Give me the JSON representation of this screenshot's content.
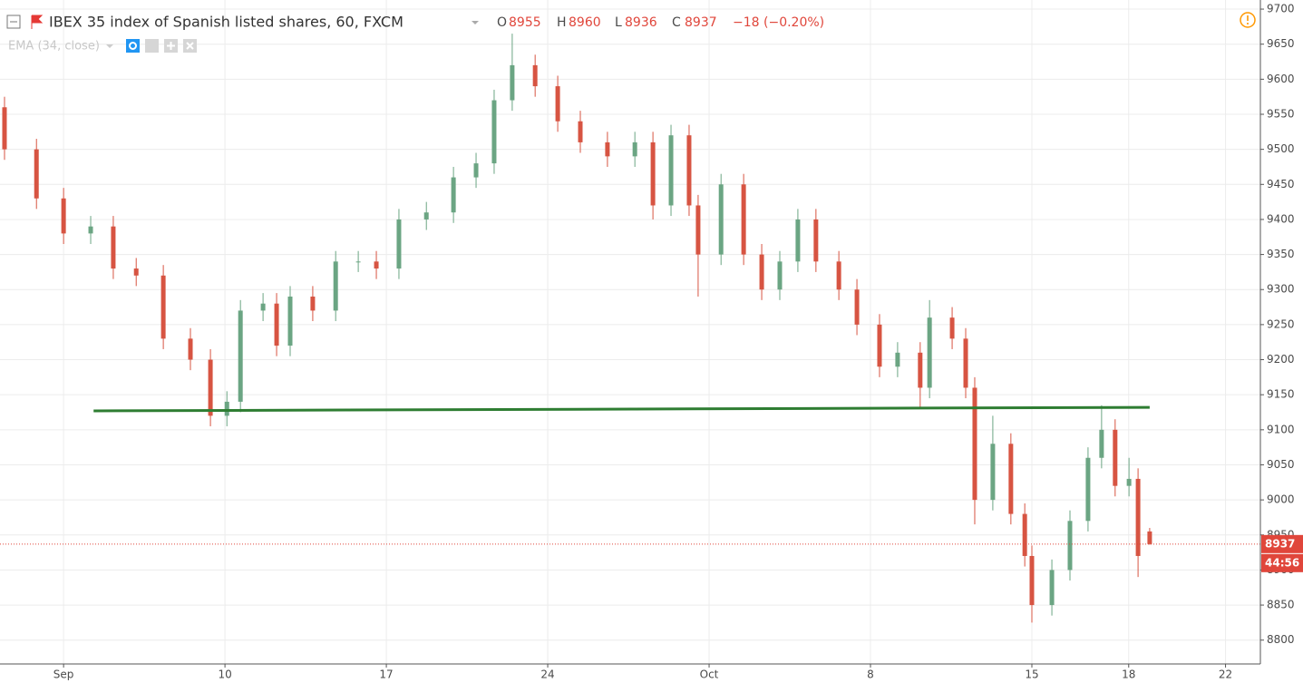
{
  "chart_data": {
    "type": "candlestick",
    "title": "IBEX 35 index of Spanish listed shares, 60, FXCM",
    "header": {
      "o_label": "O",
      "open": 8955,
      "h_label": "H",
      "high": 8960,
      "l_label": "L",
      "low": 8936,
      "c_label": "C",
      "close": 8937,
      "change": "−18 (−0.20%)"
    },
    "indicator": "EMA (34, close)",
    "up_color": "#6ba583",
    "down_color": "#d75442",
    "x": [
      -1.83,
      -0.84,
      0,
      0.84,
      1.54,
      2.25,
      3.09,
      3.93,
      4.55,
      5.06,
      5.48,
      6.18,
      6.6,
      7.02,
      7.72,
      8.43,
      9.13,
      9.69,
      10.39,
      11.24,
      12.08,
      12.78,
      13.34,
      13.9,
      14.61,
      15.31,
      16.01,
      16.85,
      17.7,
      18.26,
      18.82,
      19.38,
      19.66,
      20.37,
      21.07,
      21.63,
      22.19,
      22.75,
      23.31,
      24.02,
      24.58,
      25.28,
      25.84,
      26.54,
      26.83,
      27.53,
      27.95,
      28.23,
      28.79,
      29.35,
      29.78,
      30,
      30.62,
      31.18,
      31.74,
      32.16,
      32.58,
      33.01,
      33.29,
      33.65
    ],
    "open": [
      9560,
      9500,
      9430,
      9380,
      9390,
      9330,
      9320,
      9230,
      9200,
      9120,
      9140,
      9270,
      9280,
      9220,
      9290,
      9270,
      9340,
      9340,
      9330,
      9400,
      9410,
      9460,
      9480,
      9570,
      9620,
      9590,
      9540,
      9510,
      9490,
      9510,
      9420,
      9520,
      9420,
      9350,
      9450,
      9350,
      9300,
      9340,
      9400,
      9340,
      9300,
      9250,
      9190,
      9210,
      9160,
      9260,
      9230,
      9160,
      9000,
      9080,
      8980,
      8920,
      8850,
      8900,
      8970,
      9060,
      9100,
      9020,
      9030,
      8955
    ],
    "high": [
      9575,
      9515,
      9445,
      9405,
      9405,
      9345,
      9335,
      9245,
      9215,
      9155,
      9285,
      9295,
      9295,
      9305,
      9305,
      9355,
      9355,
      9355,
      9415,
      9425,
      9475,
      9495,
      9585,
      9665,
      9635,
      9605,
      9555,
      9525,
      9525,
      9525,
      9535,
      9535,
      9435,
      9465,
      9465,
      9365,
      9355,
      9415,
      9415,
      9355,
      9315,
      9265,
      9225,
      9225,
      9285,
      9275,
      9245,
      9175,
      9120,
      9095,
      8995,
      8935,
      8915,
      8985,
      9075,
      9135,
      9115,
      9060,
      9045,
      8960
    ],
    "low": [
      9485,
      9415,
      9365,
      9365,
      9315,
      9305,
      9215,
      9185,
      9105,
      9105,
      9125,
      9255,
      9205,
      9205,
      9255,
      9255,
      9325,
      9315,
      9315,
      9385,
      9395,
      9445,
      9465,
      9555,
      9575,
      9525,
      9495,
      9475,
      9475,
      9400,
      9405,
      9405,
      9290,
      9335,
      9335,
      9285,
      9285,
      9325,
      9325,
      9285,
      9235,
      9175,
      9175,
      9130,
      9145,
      9215,
      9145,
      8965,
      8985,
      8965,
      8905,
      8825,
      8835,
      8885,
      8955,
      9045,
      9005,
      9005,
      8890,
      8936
    ],
    "close": [
      9500,
      9430,
      9380,
      9390,
      9330,
      9320,
      9230,
      9200,
      9120,
      9140,
      9270,
      9280,
      9220,
      9290,
      9270,
      9340,
      9340,
      9330,
      9400,
      9410,
      9460,
      9480,
      9570,
      9620,
      9590,
      9540,
      9510,
      9490,
      9510,
      9420,
      9520,
      9420,
      9350,
      9450,
      9350,
      9300,
      9340,
      9400,
      9340,
      9300,
      9250,
      9190,
      9210,
      9160,
      9260,
      9230,
      9160,
      9000,
      9080,
      8980,
      8920,
      8850,
      8900,
      8970,
      9060,
      9100,
      9020,
      9030,
      8920,
      8937
    ],
    "trendline": {
      "x": [
        0.93,
        33.65
      ],
      "y": [
        9127,
        9132
      ],
      "color": "#2e7d32"
    },
    "last_price": 8937,
    "countdown": "44:56",
    "last_price_color": "#e0463b",
    "xlim": [
      -1.97,
      37.08
    ],
    "xticks": [
      {
        "value": 0,
        "label": "Sep"
      },
      5,
      {
        "value": 5,
        "label": "10"
      },
      {
        "value": 10,
        "label": "17"
      },
      {
        "value": 15,
        "label": "24"
      },
      {
        "value": 20,
        "label": "Oct"
      },
      {
        "value": 25,
        "label": "8"
      },
      {
        "value": 30,
        "label": "15"
      },
      {
        "value": 33,
        "label": "18"
      },
      {
        "value": 36,
        "label": "22"
      }
    ],
    "ylim": [
      8766,
      9713
    ],
    "yticks": [
      8800,
      8850,
      8900,
      8950,
      9000,
      9050,
      9100,
      9150,
      9200,
      9250,
      9300,
      9350,
      9400,
      9450,
      9500,
      9550,
      9600,
      9650,
      9700
    ],
    "grid": true
  }
}
